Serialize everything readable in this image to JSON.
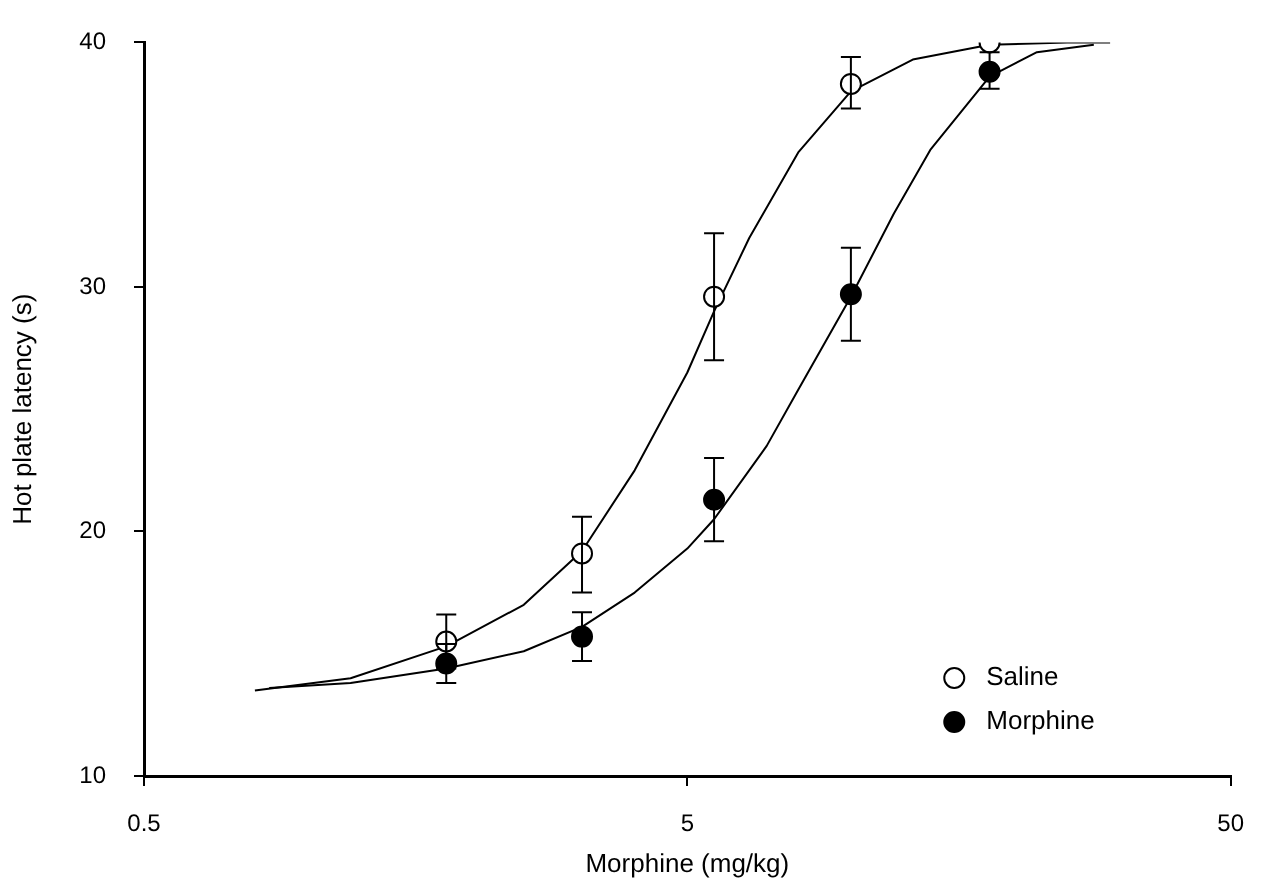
{
  "chart_data": {
    "type": "scatter",
    "xlabel": "Morphine (mg/kg)",
    "ylabel": "Hot plate latency (s)",
    "log": "x",
    "xlim": [
      0.5,
      50
    ],
    "xticks": [
      0.5,
      5,
      50
    ],
    "ylim": [
      10,
      40
    ],
    "yticks": [
      10,
      20,
      30,
      40
    ],
    "grid": false,
    "legend": "bottom right",
    "marker": "circle",
    "x": [
      1.8,
      3.2,
      5.6,
      10,
      18
    ],
    "series": [
      {
        "type": "line",
        "color": "#000000",
        "marker": "none",
        "line_style": "solid",
        "x": [
          0.8,
          1.2,
          1.8,
          2.5,
          3.2,
          4,
          5,
          5.6,
          6.5,
          8,
          10,
          13,
          18,
          25,
          30
        ],
        "values": [
          13.5,
          14.0,
          15.3,
          17.0,
          19.2,
          22.5,
          26.5,
          29.0,
          32.0,
          35.5,
          38.0,
          39.3,
          39.9,
          40,
          40
        ]
      },
      {
        "type": "line",
        "color": "#000000",
        "marker": "none",
        "line_style": "solid",
        "x": [
          0.85,
          1.2,
          1.8,
          2.5,
          3.2,
          4,
          5,
          5.6,
          7,
          8,
          10,
          12,
          14,
          18,
          22,
          28
        ],
        "values": [
          13.6,
          13.8,
          14.4,
          15.1,
          16.1,
          17.5,
          19.3,
          20.5,
          23.5,
          25.8,
          29.6,
          33.0,
          35.6,
          38.6,
          39.6,
          39.9
        ]
      },
      {
        "name": "Saline",
        "color": "#ffffff",
        "values": [
          15.5,
          19.1,
          29.6,
          38.3,
          40.0
        ],
        "errors": [
          [
            14.4,
            16.6
          ],
          [
            17.5,
            20.6
          ],
          [
            27.0,
            32.2
          ],
          [
            37.3,
            39.4
          ],
          null
        ]
      },
      {
        "name": "Morphine",
        "color": "#000000",
        "values": [
          14.6,
          15.7,
          21.3,
          29.7,
          38.8
        ],
        "errors": [
          [
            13.8,
            15.4
          ],
          [
            14.7,
            16.7
          ],
          [
            19.6,
            23.0
          ],
          [
            27.8,
            31.6
          ],
          [
            38.1,
            39.6
          ]
        ]
      }
    ]
  }
}
